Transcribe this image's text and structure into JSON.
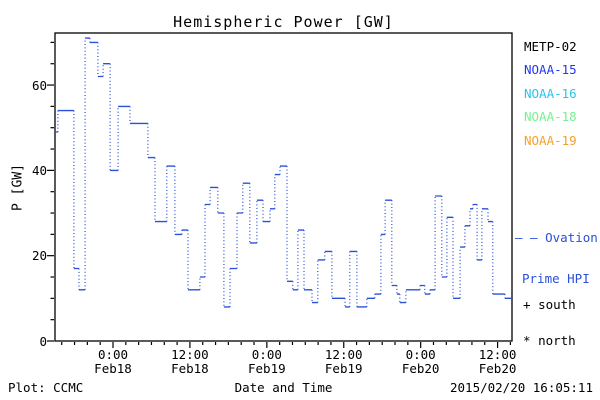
{
  "title": "Hemispheric Power [GW]",
  "footer": {
    "left": "Plot: CCMC",
    "center": "Date and Time",
    "right": "2015/02/20 16:05:11"
  },
  "legend": {
    "satellites": [
      {
        "label": "METP-02",
        "color": "#000000"
      },
      {
        "label": "NOAA-15",
        "color": "#2238f0"
      },
      {
        "label": "NOAA-16",
        "color": "#28c4f0"
      },
      {
        "label": "NOAA-18",
        "color": "#78f092"
      },
      {
        "label": "NOAA-19",
        "color": "#f5a02b"
      }
    ],
    "ovation": {
      "dash": "– –",
      "name_line1": "Ovation",
      "name_line2": "Prime HPI",
      "color": "#2a50d8"
    },
    "markers": [
      {
        "symbol": "+",
        "label": "south"
      },
      {
        "symbol": "*",
        "label": "north"
      }
    ]
  },
  "chart_data": {
    "type": "line",
    "style": "steps-post",
    "title": "Hemispheric Power [GW]",
    "xlabel": "Date and Time",
    "ylabel": "P [GW]",
    "series_name": "Ovation Prime HPI",
    "line_color": "#2a50d8",
    "frame_color": "#000000",
    "grid": false,
    "ylim": [
      0,
      72.2
    ],
    "y_major_ticks": [
      0,
      20,
      40,
      60
    ],
    "y_minor_step": 5,
    "x_range_hours": 71.3,
    "x_minor_step_hours": 2,
    "x_major_ticks": [
      {
        "hours": 9.05,
        "time": "0:00",
        "date": "Feb18"
      },
      {
        "hours": 21.05,
        "time": "12:00",
        "date": "Feb18"
      },
      {
        "hours": 33.05,
        "time": "0:00",
        "date": "Feb19"
      },
      {
        "hours": 45.05,
        "time": "12:00",
        "date": "Feb19"
      },
      {
        "hours": 57.05,
        "time": "0:00",
        "date": "Feb20"
      },
      {
        "hours": 69.05,
        "time": "12:00",
        "date": "Feb20"
      }
    ],
    "points_format": [
      "hours_from_plot_start",
      "gw"
    ],
    "points": [
      [
        0,
        49
      ],
      [
        0.45,
        54
      ],
      [
        2.95,
        17
      ],
      [
        3.75,
        12
      ],
      [
        4.7,
        71
      ],
      [
        5.45,
        70
      ],
      [
        6.7,
        62
      ],
      [
        7.5,
        65
      ],
      [
        8.6,
        40
      ],
      [
        9.85,
        55
      ],
      [
        11.7,
        51
      ],
      [
        14.5,
        43
      ],
      [
        15.6,
        28
      ],
      [
        17.45,
        41
      ],
      [
        18.7,
        25
      ],
      [
        19.8,
        26
      ],
      [
        20.75,
        12
      ],
      [
        22.6,
        15
      ],
      [
        23.4,
        32
      ],
      [
        24.2,
        36
      ],
      [
        25.4,
        30
      ],
      [
        26.35,
        8
      ],
      [
        27.3,
        17
      ],
      [
        28.4,
        30
      ],
      [
        29.3,
        37
      ],
      [
        30.4,
        23
      ],
      [
        31.5,
        33
      ],
      [
        32.45,
        28
      ],
      [
        33.55,
        31
      ],
      [
        34.3,
        39
      ],
      [
        35.1,
        41
      ],
      [
        36.2,
        14
      ],
      [
        37.1,
        12
      ],
      [
        37.9,
        26
      ],
      [
        38.85,
        12
      ],
      [
        40.1,
        9
      ],
      [
        41,
        19
      ],
      [
        42.1,
        21
      ],
      [
        43.2,
        10
      ],
      [
        45.25,
        8
      ],
      [
        46,
        21
      ],
      [
        47.1,
        8
      ],
      [
        48.65,
        10
      ],
      [
        49.9,
        11
      ],
      [
        50.85,
        25
      ],
      [
        51.5,
        33
      ],
      [
        52.55,
        13
      ],
      [
        53.35,
        11
      ],
      [
        53.8,
        9
      ],
      [
        54.75,
        12
      ],
      [
        56.95,
        13
      ],
      [
        57.7,
        11
      ],
      [
        58.5,
        12
      ],
      [
        59.3,
        34
      ],
      [
        60.35,
        15
      ],
      [
        61.15,
        29
      ],
      [
        62.1,
        10
      ],
      [
        63.2,
        22
      ],
      [
        63.95,
        27
      ],
      [
        64.75,
        31
      ],
      [
        65.2,
        32
      ],
      [
        65.85,
        19
      ],
      [
        66.6,
        31
      ],
      [
        67.55,
        28
      ],
      [
        68.3,
        11
      ],
      [
        70.2,
        10
      ]
    ]
  }
}
